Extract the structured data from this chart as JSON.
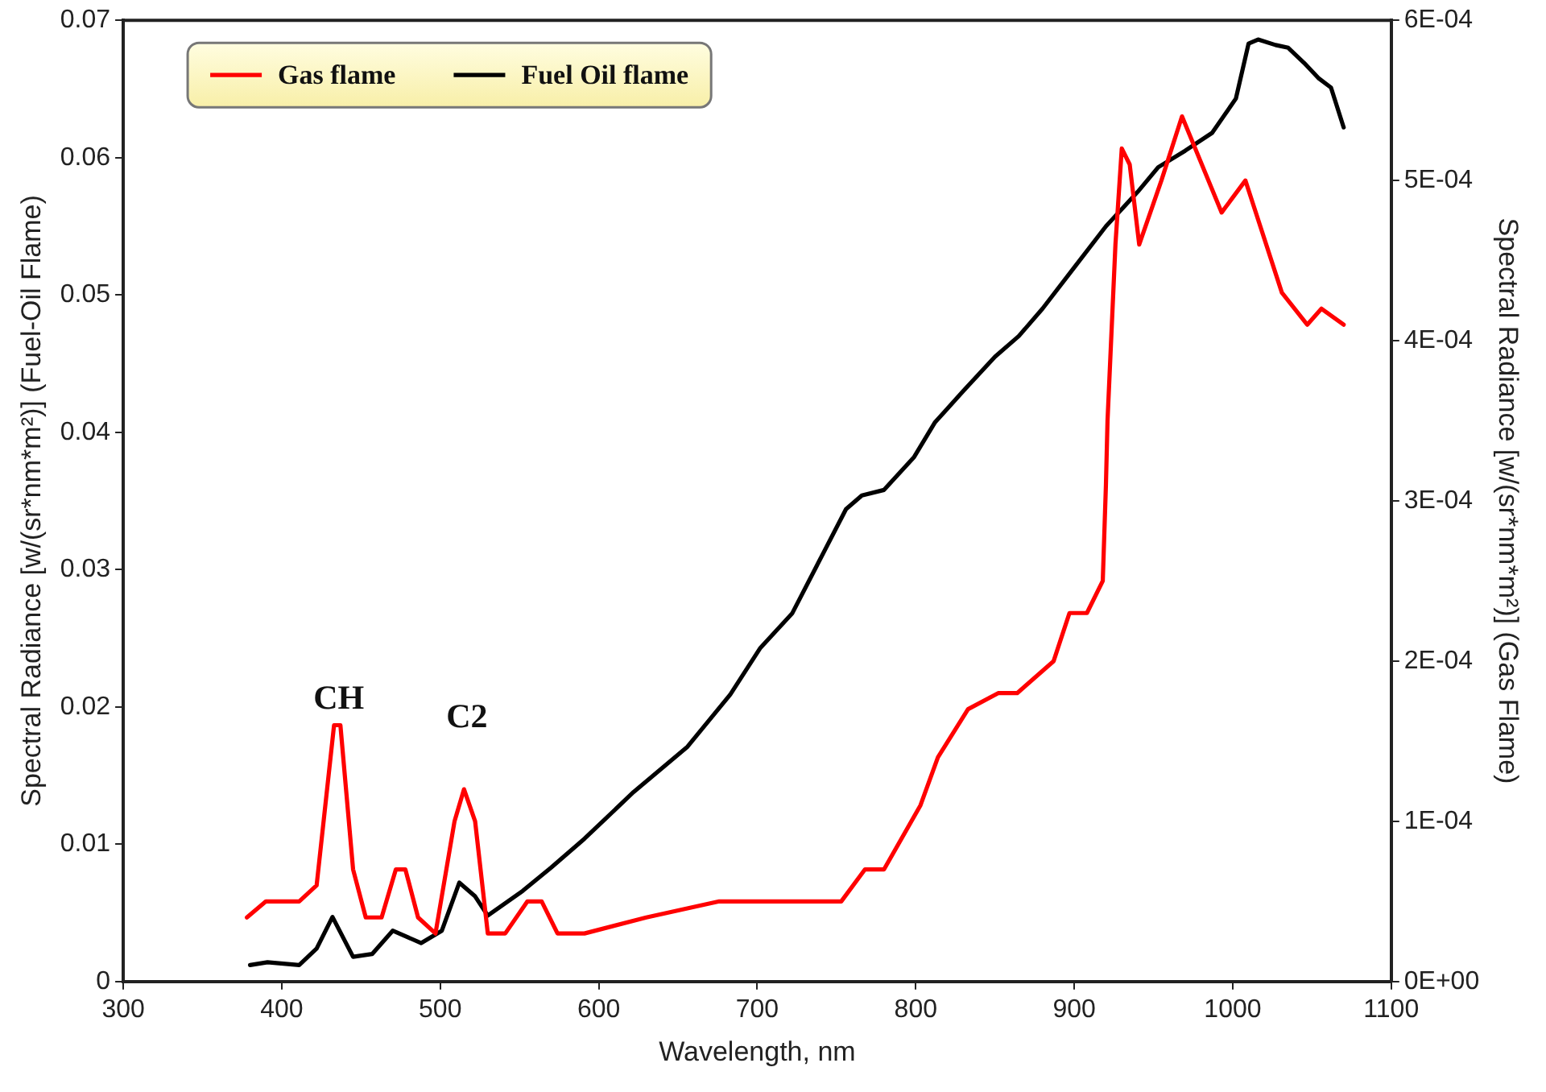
{
  "chart_data": {
    "type": "line",
    "xlabel": "Wavelength, nm",
    "ylabel": "Spectral Radiance [w/(sr*nm*m²)] (Fuel-Oil Flame)",
    "y2label": "Spectral Radiance [w/(sr*nm*m²)] (Gas Flame)",
    "xlim": [
      300,
      1100
    ],
    "xticks": [
      300,
      400,
      500,
      600,
      700,
      800,
      900,
      1000,
      1100
    ],
    "ylim": [
      0,
      0.07
    ],
    "yticks": [
      0,
      0.01,
      0.02,
      0.03,
      0.04,
      0.05,
      0.06,
      0.07
    ],
    "y2lim": [
      0,
      0.0006
    ],
    "y2ticks": [
      {
        "value": 0,
        "label": "0E+00"
      },
      {
        "value": 0.0001,
        "label": "1E-04"
      },
      {
        "value": 0.0002,
        "label": "2E-04"
      },
      {
        "value": 0.0003,
        "label": "3E-04"
      },
      {
        "value": 0.0004,
        "label": "4E-04"
      },
      {
        "value": 0.0005,
        "label": "5E-04"
      },
      {
        "value": 0.0006,
        "label": "6E-04"
      }
    ],
    "grid": false,
    "legend": "top left",
    "marker": "none",
    "line_style": "solid",
    "annotations": [
      "CH",
      "C2"
    ],
    "series": [
      {
        "name": "Gas flame",
        "color": "#ff0000",
        "axis": "y2",
        "x": [
          378,
          390,
          395,
          411,
          422,
          433,
          437,
          445,
          453,
          463,
          472,
          478,
          486,
          497,
          509,
          515,
          522,
          530,
          541,
          555,
          564,
          574,
          591,
          630,
          676,
          718,
          737,
          753,
          768,
          780,
          803,
          814,
          833,
          852,
          864,
          887,
          897,
          908,
          918,
          920,
          921,
          926,
          930,
          935,
          941,
          955,
          968,
          993,
          1008,
          1031,
          1047,
          1056,
          1070
        ],
        "values": [
          4e-05,
          5e-05,
          5e-05,
          5e-05,
          6e-05,
          0.00016,
          0.00016,
          7e-05,
          4e-05,
          4e-05,
          7e-05,
          7e-05,
          4e-05,
          3e-05,
          0.0001,
          0.00012,
          0.0001,
          3e-05,
          3e-05,
          5e-05,
          5e-05,
          3e-05,
          3e-05,
          4e-05,
          5e-05,
          5e-05,
          5e-05,
          5e-05,
          7e-05,
          7e-05,
          0.00011,
          0.00014,
          0.00017,
          0.00018,
          0.00018,
          0.0002,
          0.00023,
          0.00023,
          0.00025,
          0.00031,
          0.00035,
          0.00046,
          0.00052,
          0.00051,
          0.00046,
          0.0005,
          0.00054,
          0.00048,
          0.0005,
          0.00043,
          0.00041,
          0.00042,
          0.00041
        ]
      },
      {
        "name": "Fuel Oil flame",
        "color": "#000000",
        "x": [
          380,
          391,
          411,
          422,
          432,
          445,
          457,
          470,
          488,
          501,
          512,
          522,
          530,
          552,
          570,
          591,
          622,
          656,
          683,
          702,
          722,
          756,
          766,
          780,
          799,
          812,
          830,
          850,
          865,
          880,
          900,
          920,
          940,
          953,
          970,
          987,
          1002,
          1010,
          1016,
          1027,
          1035,
          1045,
          1054,
          1062,
          1070
        ],
        "values": [
          0.0012,
          0.0014,
          0.0012,
          0.0024,
          0.0047,
          0.0018,
          0.002,
          0.0037,
          0.0028,
          0.0037,
          0.0072,
          0.0062,
          0.0048,
          0.0066,
          0.0083,
          0.0104,
          0.0138,
          0.0171,
          0.0209,
          0.0243,
          0.0268,
          0.0344,
          0.0354,
          0.0358,
          0.0382,
          0.0407,
          0.043,
          0.0455,
          0.047,
          0.049,
          0.052,
          0.055,
          0.0575,
          0.0593,
          0.0605,
          0.0618,
          0.0643,
          0.0683,
          0.0686,
          0.0682,
          0.068,
          0.0669,
          0.0658,
          0.0651,
          0.0622
        ]
      }
    ]
  }
}
